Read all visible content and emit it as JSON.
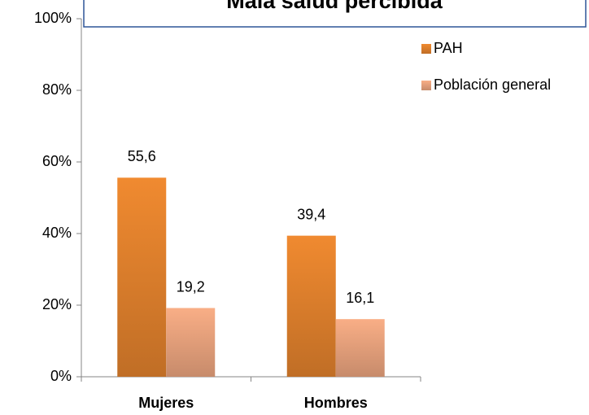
{
  "chart_data": {
    "type": "bar",
    "title": "Mala salud percibida",
    "categories": [
      "Mujeres",
      "Hombres"
    ],
    "series": [
      {
        "name": "PAH",
        "color": "#f08a30",
        "values": [
          55.6,
          39.4
        ],
        "value_labels": [
          "55,6",
          "39,4"
        ]
      },
      {
        "name": "Población general",
        "color": "#f9ae86",
        "values": [
          19.2,
          16.1
        ],
        "value_labels": [
          "19,2",
          "16,1"
        ]
      }
    ],
    "ylim": [
      0,
      100
    ],
    "yticks": [
      {
        "value": 0,
        "label": "0%"
      },
      {
        "value": 20,
        "label": "20%"
      },
      {
        "value": 40,
        "label": "40%"
      },
      {
        "value": 60,
        "label": "60%"
      },
      {
        "value": 80,
        "label": "80%"
      },
      {
        "value": 100,
        "label": "100%"
      }
    ],
    "legend": "right"
  }
}
